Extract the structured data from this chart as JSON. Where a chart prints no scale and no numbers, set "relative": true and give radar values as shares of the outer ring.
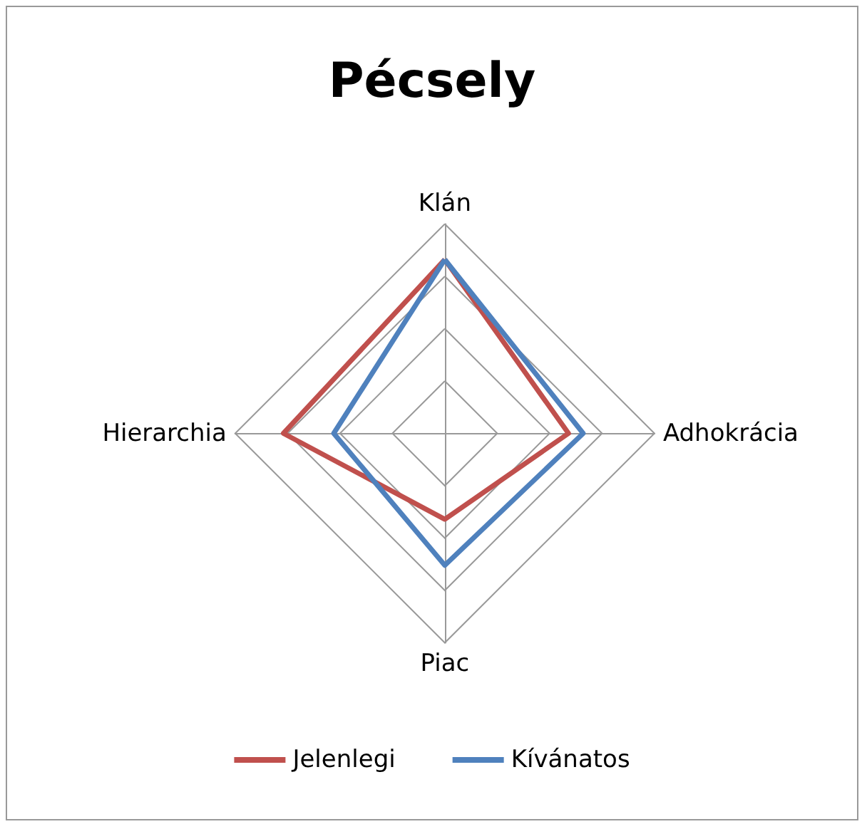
{
  "chart_data": {
    "type": "radar",
    "title": "Pécsely",
    "relative": true,
    "categories": [
      "Klán",
      "Adhokrácia",
      "Piac",
      "Hierarchia"
    ],
    "series": [
      {
        "name": "Jelenlegi",
        "color": "#c0504d",
        "values": [
          0.83,
          0.59,
          0.41,
          0.77
        ]
      },
      {
        "name": "Kívánatos",
        "color": "#4f81bd",
        "values": [
          0.83,
          0.66,
          0.63,
          0.53
        ]
      }
    ],
    "legend": "bottom",
    "marker": "none",
    "grid": true
  }
}
